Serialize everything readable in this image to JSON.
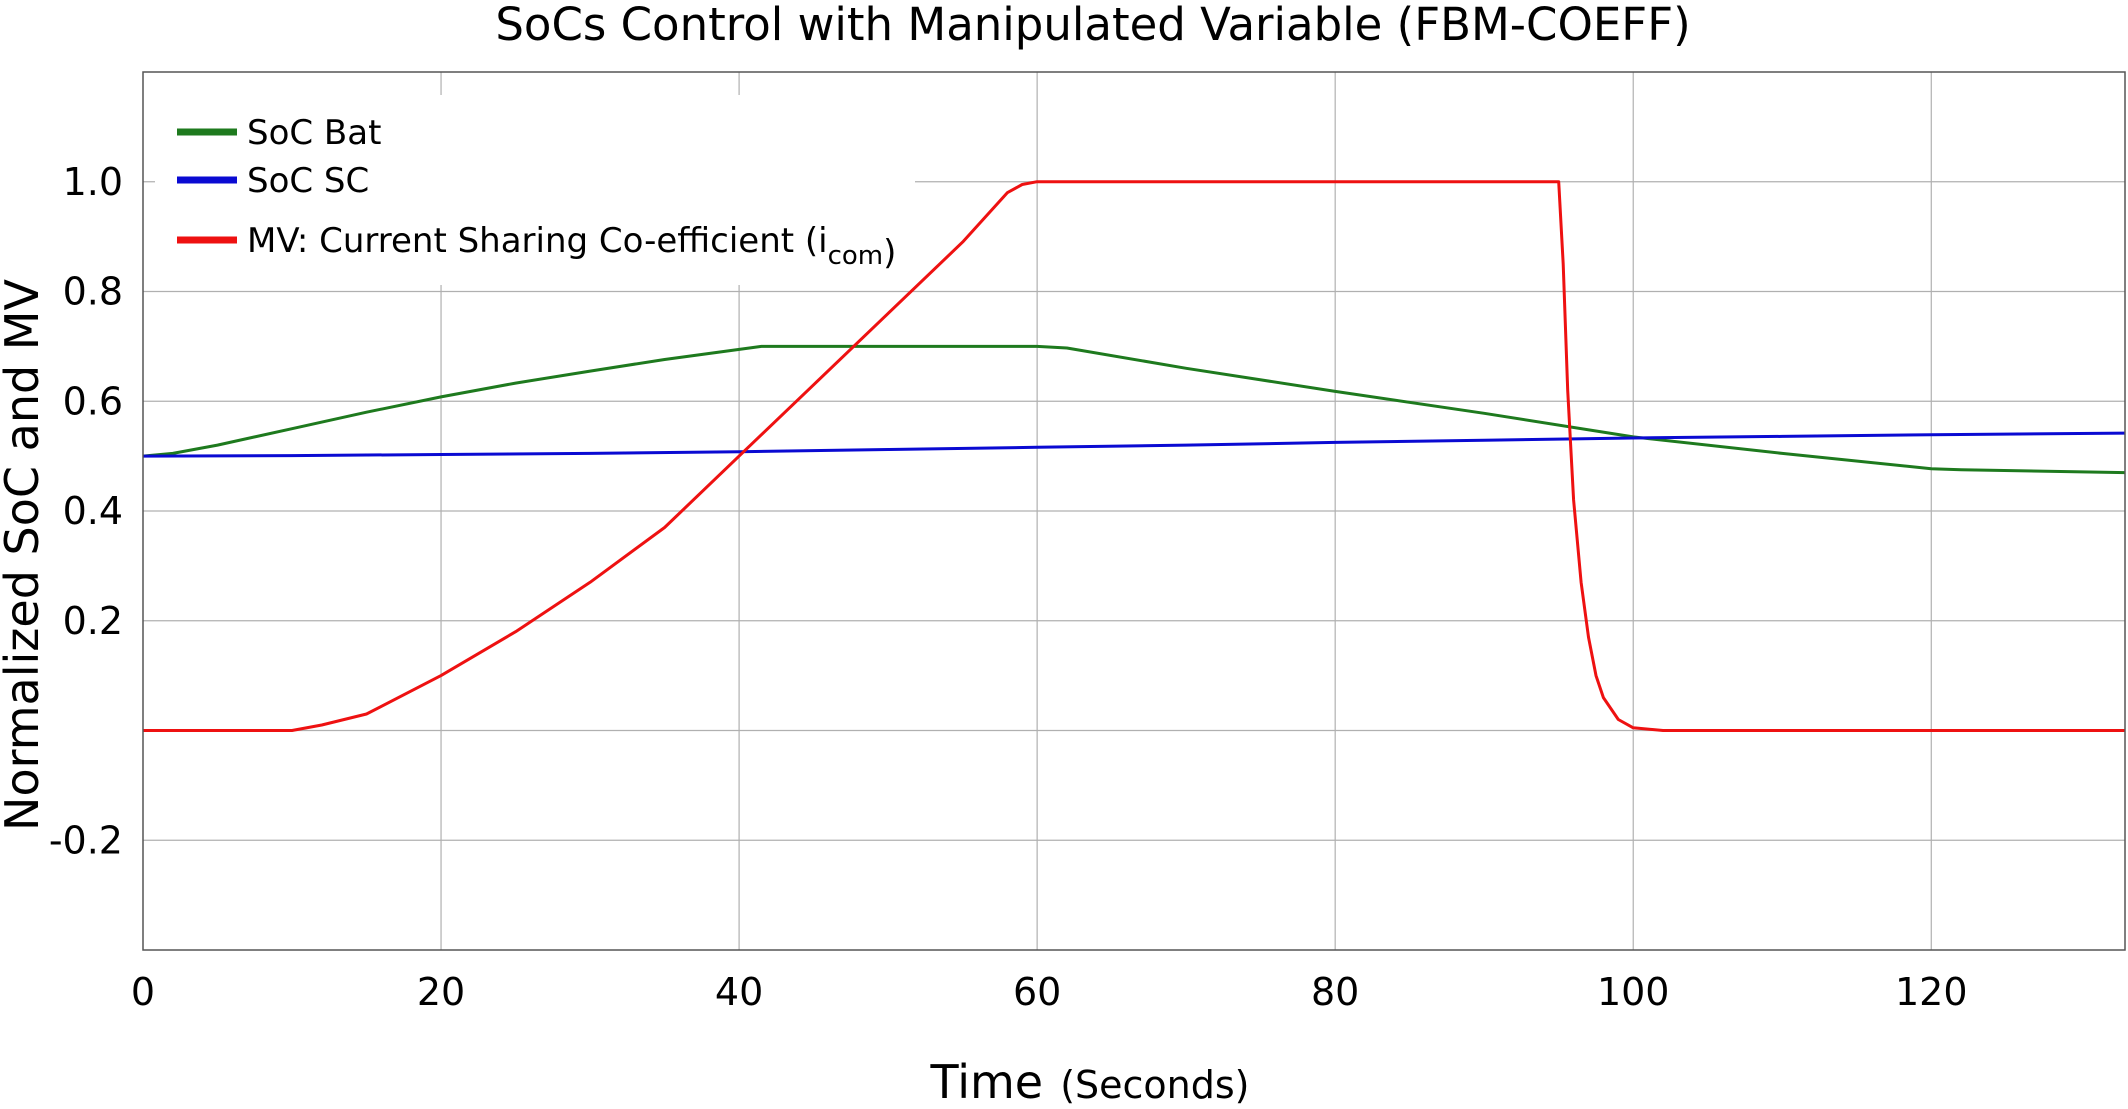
{
  "chart_data": {
    "type": "line",
    "title": "SoCs Control with Manipulated Variable (FBM-COEFF)",
    "xlabel": "Time",
    "xlabel_unit": "(Seconds)",
    "ylabel": "Normalized SoC and MV",
    "xlim": [
      0,
      133
    ],
    "ylim": [
      -0.4,
      1.2
    ],
    "x_ticks": [
      0,
      20,
      40,
      60,
      80,
      100,
      120
    ],
    "x_tick_labels": [
      "0",
      "20",
      "40",
      "60",
      "80",
      "100",
      "120"
    ],
    "y_ticks": [
      -0.2,
      0,
      0.2,
      0.4,
      0.6,
      0.8,
      1.0
    ],
    "y_tick_labels": [
      "-0.2",
      "",
      "0.2",
      "0.4",
      "0.6",
      "0.8",
      "1.0"
    ],
    "grid": true,
    "legend_position": "top-left",
    "series": [
      {
        "name": "SoC Bat",
        "color": "#1e7a1e",
        "x": [
          0,
          2,
          5,
          10,
          15,
          20,
          25,
          30,
          35,
          41.5,
          50,
          60,
          62,
          70,
          80,
          90,
          100,
          110,
          120,
          122,
          133
        ],
        "y": [
          0.5,
          0.505,
          0.52,
          0.55,
          0.58,
          0.608,
          0.633,
          0.655,
          0.676,
          0.7,
          0.7,
          0.7,
          0.697,
          0.66,
          0.618,
          0.578,
          0.535,
          0.505,
          0.477,
          0.475,
          0.47
        ]
      },
      {
        "name": "SoC SC",
        "color": "#0a0ad2",
        "x": [
          0,
          10,
          20,
          30,
          40,
          50,
          60,
          70,
          80,
          90,
          100,
          110,
          120,
          133
        ],
        "y": [
          0.5,
          0.501,
          0.503,
          0.505,
          0.508,
          0.512,
          0.516,
          0.52,
          0.525,
          0.529,
          0.533,
          0.536,
          0.539,
          0.542
        ]
      },
      {
        "name": "MV: Current Sharing Co-efficient (i",
        "name_sub": "com",
        "name_close": ")",
        "color": "#ee1111",
        "x": [
          0,
          10,
          12,
          15,
          20,
          25,
          30,
          35,
          40,
          45,
          50,
          55,
          58,
          59,
          60,
          62,
          95,
          95.3,
          95.6,
          96,
          96.5,
          97,
          97.5,
          98,
          99,
          100,
          102,
          105,
          133
        ],
        "y": [
          0,
          0,
          0.01,
          0.03,
          0.1,
          0.18,
          0.27,
          0.37,
          0.5,
          0.63,
          0.76,
          0.89,
          0.98,
          0.995,
          1.0,
          1.0,
          1.0,
          0.85,
          0.62,
          0.42,
          0.27,
          0.17,
          0.1,
          0.06,
          0.02,
          0.005,
          0,
          0,
          0
        ]
      }
    ]
  }
}
